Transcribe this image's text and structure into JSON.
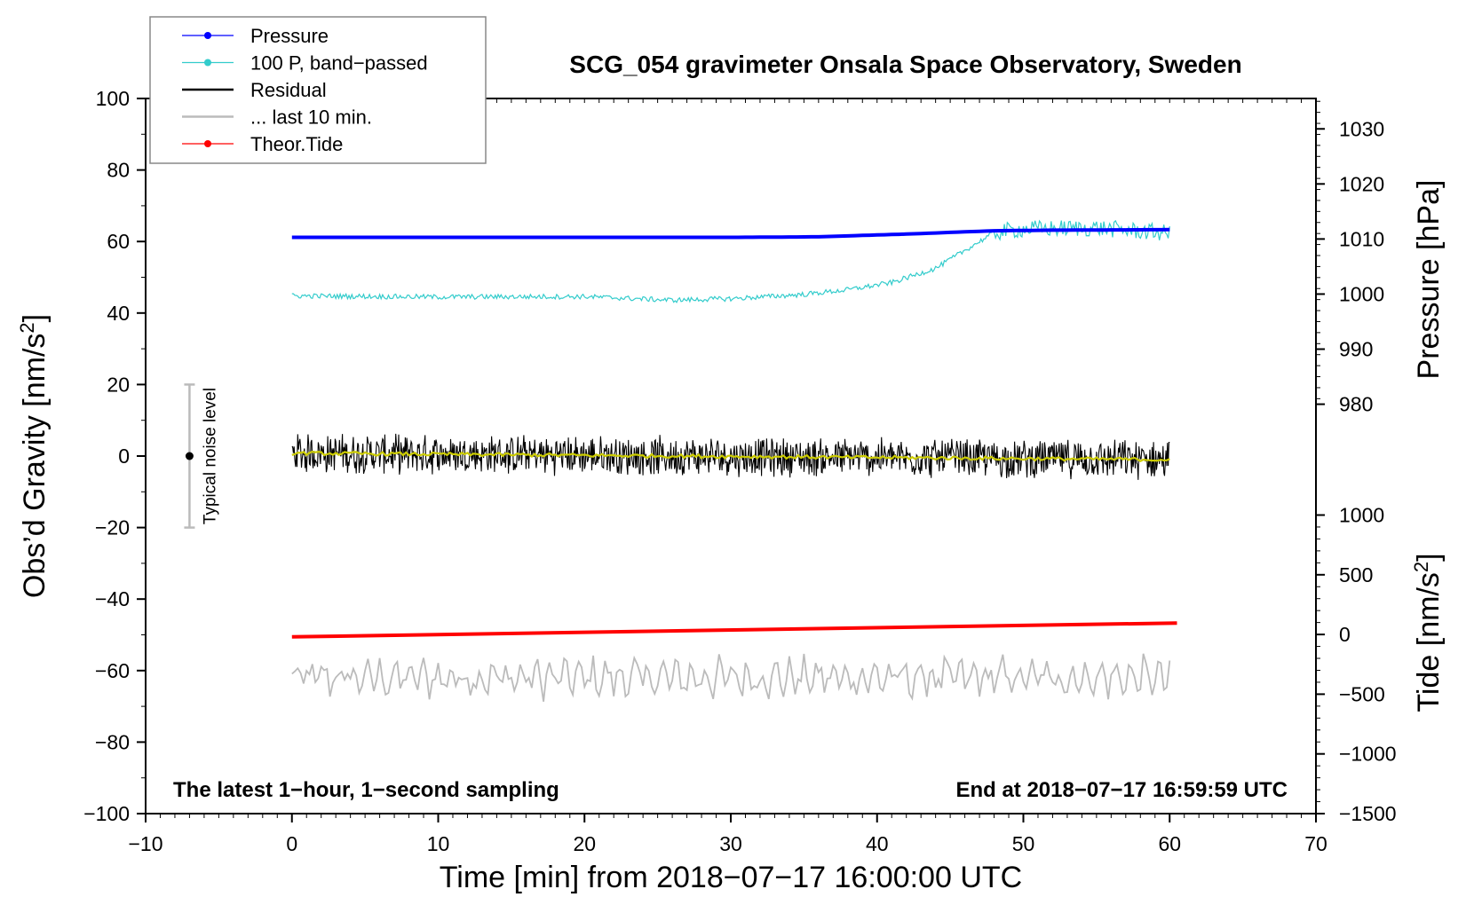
{
  "chart_data": {
    "type": "line",
    "title": "SCG_054 gravimeter Onsala Space Observatory, Sweden",
    "xlabel": "Time [min] from 2018−07−17 16:00:00 UTC",
    "ylabel_left": "Obs’d Gravity [nm/s²]",
    "ylabel_left_main": "Obs’d Gravity [nm/s",
    "ylabel_right_pressure": "Pressure [hPa]",
    "ylabel_right_tide": "Tide [nm/s²]",
    "ylabel_right_tide_main": "Tide [nm/s",
    "superscript": "2",
    "ylabel_tail": "]",
    "xlim": [
      -10,
      70
    ],
    "ylim_left": [
      -100,
      100
    ],
    "x_ticks": [
      -10,
      0,
      10,
      20,
      30,
      40,
      50,
      60,
      70
    ],
    "x_tick_labels": [
      "−10",
      "0",
      "10",
      "20",
      "30",
      "40",
      "50",
      "60",
      "70"
    ],
    "y_left_ticks": [
      100,
      80,
      60,
      40,
      20,
      0,
      -20,
      -40,
      -60,
      -80,
      -100
    ],
    "y_left_tick_labels": [
      "100",
      "80",
      "60",
      "40",
      "20",
      "0",
      "−20",
      "−40",
      "−60",
      "−80",
      "−100"
    ],
    "pressure_axis": {
      "ticks": [
        980,
        990,
        1000,
        1010,
        1020,
        1030
      ],
      "tick_labels": [
        "980",
        "990",
        "1000",
        "1010",
        "1020",
        "1030"
      ],
      "maps_to_left": [
        [
          980,
          14.5
        ],
        [
          1030,
          91.5
        ]
      ]
    },
    "tide_axis": {
      "ticks": [
        1000,
        500,
        0,
        -500,
        -1000,
        -1500
      ],
      "tick_labels": [
        "1000",
        "500",
        "0",
        "−500",
        "−1000",
        "−1500"
      ],
      "maps_to_left": [
        [
          -1500,
          -100
        ],
        [
          1000,
          -16.5
        ]
      ]
    },
    "legend": [
      {
        "label": "Pressure",
        "color": "#0000ff",
        "style": "line-dot"
      },
      {
        "label": "100 P, band−passed",
        "color": "#33cccc",
        "style": "line-dot"
      },
      {
        "label": "Residual",
        "color": "#000000",
        "style": "line"
      },
      {
        "label": "... last 10 min.",
        "color": "#bbbbbb",
        "style": "line"
      },
      {
        "label": "Theor.Tide",
        "color": "#ff0000",
        "style": "line-dot"
      }
    ],
    "series": [
      {
        "name": "Pressure",
        "color": "#0000ff",
        "unit": "hPa",
        "x": [
          0,
          10,
          20,
          30,
          36,
          42,
          48,
          52,
          60
        ],
        "values": [
          1010.3,
          1010.3,
          1010.3,
          1010.3,
          1010.4,
          1010.9,
          1011.5,
          1011.6,
          1011.7
        ]
      },
      {
        "name": "100 P, band−passed",
        "color": "#33cccc",
        "unit": "nm/s²",
        "x": [
          0,
          10,
          20,
          26,
          30,
          35,
          38,
          41,
          44,
          46,
          48,
          50,
          55,
          60
        ],
        "values": [
          44.8,
          44.5,
          44.6,
          43.6,
          44.0,
          45.2,
          46.5,
          48.5,
          52.5,
          57.5,
          62.5,
          63.5,
          63.8,
          62.3
        ]
      },
      {
        "name": "Residual",
        "color": "#000000",
        "unit": "nm/s²",
        "x": [
          0,
          60
        ],
        "values": [
          0.8,
          -1.0
        ],
        "noise_amplitude": 6
      },
      {
        "name": "Residual smoothed",
        "color": "#cccc00",
        "unit": "nm/s²",
        "x": [
          0,
          60
        ],
        "values": [
          0.8,
          -1.0
        ]
      },
      {
        "name": "... last 10 min.",
        "color": "#bbbbbb",
        "unit": "nm/s²",
        "x": [
          0,
          60
        ],
        "values": [
          -62,
          -62
        ],
        "noise_amplitude": 6
      },
      {
        "name": "Theor.Tide",
        "color": "#ff0000",
        "unit": "nm/s²",
        "x": [
          0,
          60.5
        ],
        "values": [
          -20,
          96
        ]
      }
    ],
    "annotations": {
      "noise_label": "Typical noise level",
      "noise_x": -7,
      "noise_range": [
        -20,
        20
      ],
      "bottom_left": "The latest 1−hour, 1−second sampling",
      "bottom_right": "End at 2018−07−17 16:59:59 UTC"
    }
  }
}
